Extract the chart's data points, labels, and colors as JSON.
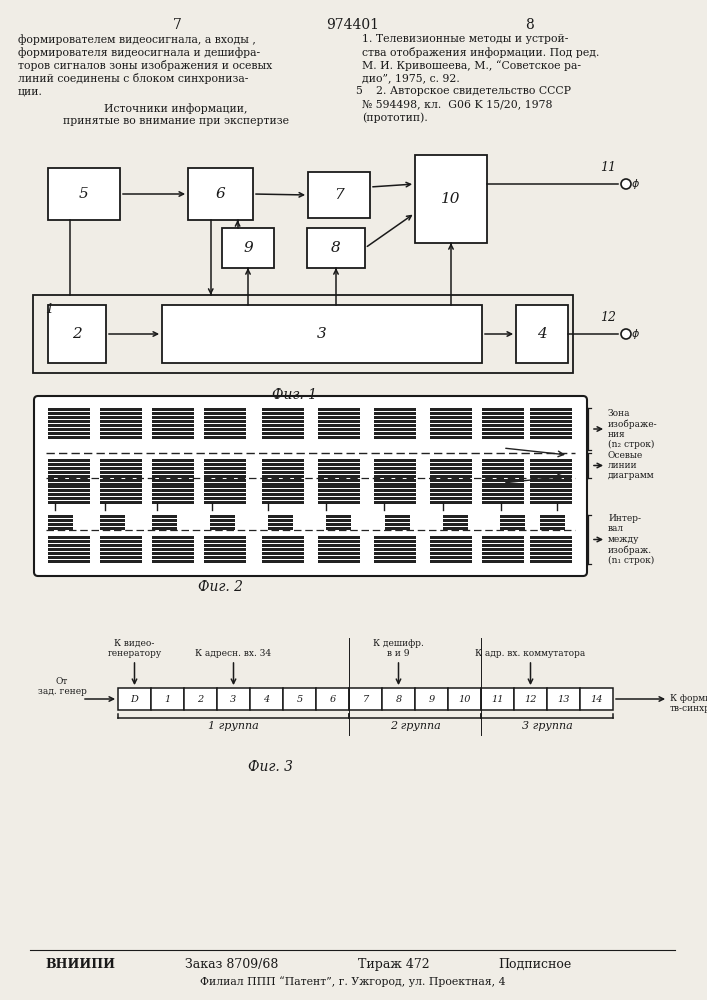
{
  "page_num_left": "7",
  "page_num_center": "974401",
  "page_num_right": "8",
  "bg_color": "#f0ede6",
  "text_color": "#1a1a1a",
  "fig1_caption": "Фиг. 1",
  "fig2_caption": "Фиг. 2",
  "fig3_caption": "Фиг. 3",
  "left_text_lines": [
    "формирователем видеосигнала, а входы ,",
    "формирователя видеосигнала и дешифра-",
    "торов сигналов зоны изображения и осевых",
    "линий соединены с блоком синхрониза-",
    "ции."
  ],
  "left_text2_lines": [
    "Источники информации,",
    "принятые во внимание при экспертизе"
  ],
  "right_text_lines": [
    "1. Телевизионные методы и устрой-",
    "ства отображения информации. Под ред.",
    "М. И. Кривошеева, М., “Советское ра-",
    "дио”, 1975, с. 92.",
    "    2. Авторское свидетельство СССР",
    "№ 594498, кл.  G06 K 15/20, 1978",
    "(прототип)."
  ],
  "bottom_text1": "ВНИИПИ",
  "bottom_text2": "Заказ 8709/68",
  "bottom_text3": "Тираж 472",
  "bottom_text4": "Подписное",
  "bottom_text5": "Филиал ППП “Патент”, г. Ужгород, ул. Проектная, 4",
  "fig2_label1": "Зона\nизображе-\nния\n(n₂ строк)",
  "fig2_label2": "Осевые\nлинии\nдиаграмм",
  "fig2_label3": "Интер-\nвал\nмежду\nизображ.\n(n₁ строк)",
  "fig3_label_top1": "К видео-\nгенератору",
  "fig3_label_top2": "К адресн. вх. 34",
  "fig3_label_top3": "К дешифр.\nв и 9",
  "fig3_label_top4": "К адр. вх. коммутатора",
  "fig3_label_left": "От\nзад. генер",
  "fig3_label_right": "К формир.\nтв-синхро.",
  "fig3_group1": "1 группа",
  "fig3_group2": "2 группа",
  "fig3_group3": "3 группа",
  "fig3_cells": [
    "D",
    "1",
    "2",
    "3",
    "4",
    "5",
    "6",
    "7",
    "8",
    "9",
    "10",
    "11",
    "12",
    "13",
    "14"
  ]
}
